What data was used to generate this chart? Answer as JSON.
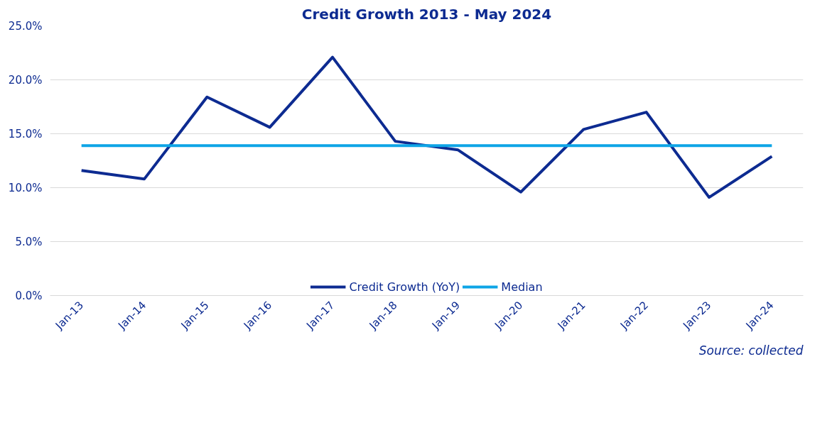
{
  "chart_data": {
    "type": "line",
    "title": "Credit Growth 2013 - May 2024",
    "categories": [
      "Jan-13",
      "Jan-14",
      "Jan-15",
      "Jan-16",
      "Jan-17",
      "Jan-18",
      "Jan-19",
      "Jan-20",
      "Jan-21",
      "Jan-22",
      "Jan-23",
      "Jan-24"
    ],
    "series": [
      {
        "name": "Credit Growth (YoY)",
        "color": "#0d2b91",
        "values": [
          11.6,
          10.8,
          18.4,
          15.6,
          22.1,
          14.3,
          13.5,
          9.6,
          15.4,
          17.0,
          9.1,
          12.9
        ]
      },
      {
        "name": "Median",
        "color": "#0ea5e6",
        "values": [
          13.9,
          13.9,
          13.9,
          13.9,
          13.9,
          13.9,
          13.9,
          13.9,
          13.9,
          13.9,
          13.9,
          13.9
        ]
      }
    ],
    "ylim": [
      0,
      25
    ],
    "yticks": [
      {
        "value": 0,
        "label": "0.0%"
      },
      {
        "value": 5,
        "label": "5.0%"
      },
      {
        "value": 10,
        "label": "10.0%"
      },
      {
        "value": 15,
        "label": "15.0%"
      },
      {
        "value": 20,
        "label": "20.0%"
      },
      {
        "value": 25,
        "label": "25.0%"
      }
    ],
    "grid": "y",
    "legend": "bottom",
    "marker": "none",
    "line_style": "solid",
    "annotations": [
      "Source: collected"
    ]
  }
}
